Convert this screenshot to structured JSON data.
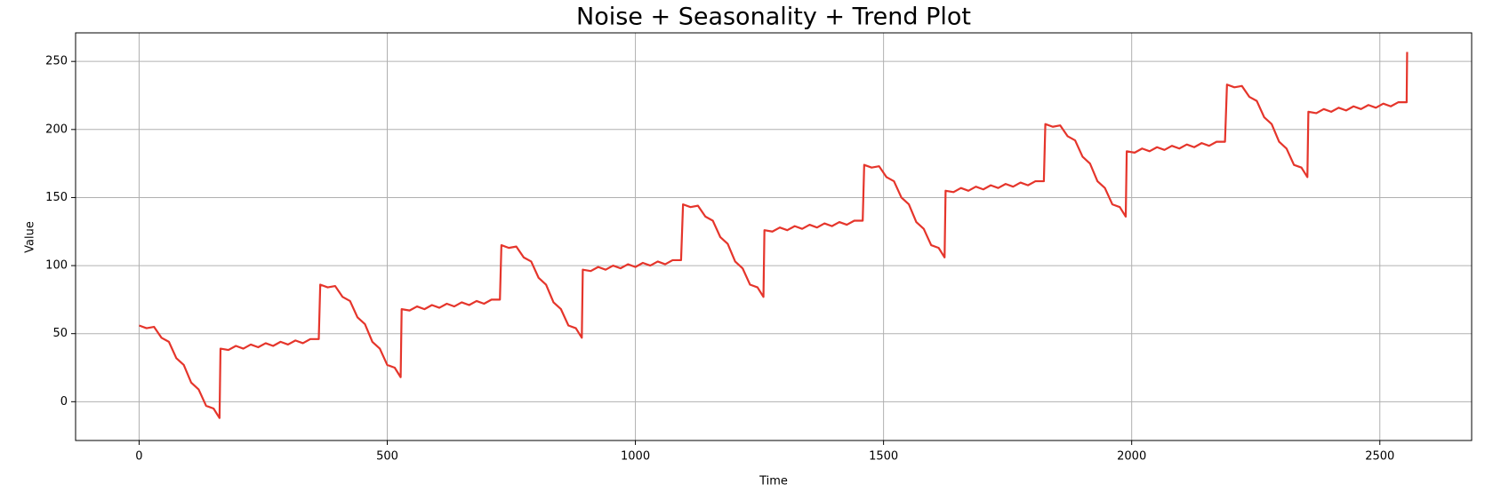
{
  "chart_data": {
    "type": "line",
    "title": "Noise + Seasonality + Trend Plot",
    "xlabel": "Time",
    "ylabel": "Value",
    "color": "#e5352b",
    "grid": true,
    "xlim": [
      -128,
      2685
    ],
    "ylim": [
      -28.5,
      271
    ],
    "xticks": [
      0,
      500,
      1000,
      1500,
      2000,
      2500
    ],
    "yticks": [
      0,
      50,
      100,
      150,
      200,
      250
    ],
    "x": [
      0,
      15,
      30,
      45,
      60,
      75,
      90,
      105,
      120,
      135,
      150,
      162,
      164,
      180,
      195,
      210,
      225,
      240,
      255,
      270,
      285,
      300,
      315,
      330,
      345,
      362,
      365,
      380,
      395,
      410,
      425,
      440,
      455,
      470,
      485,
      500,
      515,
      527,
      529,
      545,
      560,
      575,
      590,
      605,
      620,
      635,
      650,
      665,
      680,
      695,
      710,
      727,
      730,
      745,
      760,
      775,
      790,
      805,
      820,
      835,
      850,
      865,
      880,
      892,
      894,
      910,
      925,
      940,
      955,
      970,
      985,
      1000,
      1015,
      1030,
      1045,
      1060,
      1075,
      1092,
      1096,
      1111,
      1126,
      1141,
      1156,
      1171,
      1186,
      1201,
      1216,
      1231,
      1246,
      1258,
      1260,
      1276,
      1291,
      1306,
      1321,
      1336,
      1351,
      1366,
      1381,
      1396,
      1411,
      1426,
      1441,
      1458,
      1461,
      1476,
      1491,
      1506,
      1521,
      1536,
      1551,
      1566,
      1581,
      1596,
      1611,
      1623,
      1625,
      1641,
      1656,
      1671,
      1686,
      1701,
      1716,
      1731,
      1746,
      1761,
      1776,
      1791,
      1806,
      1823,
      1826,
      1841,
      1856,
      1871,
      1886,
      1901,
      1916,
      1931,
      1946,
      1961,
      1976,
      1988,
      1990,
      2006,
      2021,
      2036,
      2051,
      2066,
      2081,
      2096,
      2111,
      2126,
      2141,
      2156,
      2171,
      2188,
      2192,
      2207,
      2222,
      2237,
      2252,
      2267,
      2282,
      2297,
      2312,
      2327,
      2342,
      2354,
      2356,
      2372,
      2387,
      2402,
      2417,
      2432,
      2447,
      2462,
      2477,
      2492,
      2507,
      2522,
      2537,
      2554,
      2555
    ],
    "values": [
      56,
      54,
      55,
      47,
      44,
      32,
      27,
      14,
      9,
      -3,
      -5,
      -12,
      39,
      38,
      41,
      39,
      42,
      40,
      43,
      41,
      44,
      42,
      45,
      43,
      46,
      46,
      86,
      84,
      85,
      77,
      74,
      62,
      57,
      44,
      39,
      27,
      25,
      18,
      68,
      67,
      70,
      68,
      71,
      69,
      72,
      70,
      73,
      71,
      74,
      72,
      75,
      75,
      115,
      113,
      114,
      106,
      103,
      91,
      86,
      73,
      68,
      56,
      54,
      47,
      97,
      96,
      99,
      97,
      100,
      98,
      101,
      99,
      102,
      100,
      103,
      101,
      104,
      104,
      145,
      143,
      144,
      136,
      133,
      121,
      116,
      103,
      98,
      86,
      84,
      77,
      126,
      125,
      128,
      126,
      129,
      127,
      130,
      128,
      131,
      129,
      132,
      130,
      133,
      133,
      174,
      172,
      173,
      165,
      162,
      150,
      145,
      132,
      127,
      115,
      113,
      106,
      155,
      154,
      157,
      155,
      158,
      156,
      159,
      157,
      160,
      158,
      161,
      159,
      162,
      162,
      204,
      202,
      203,
      195,
      192,
      180,
      175,
      162,
      157,
      145,
      143,
      136,
      184,
      183,
      186,
      184,
      187,
      185,
      188,
      186,
      189,
      187,
      190,
      188,
      191,
      191,
      233,
      231,
      232,
      224,
      221,
      209,
      204,
      191,
      186,
      174,
      172,
      165,
      213,
      212,
      215,
      213,
      216,
      214,
      217,
      215,
      218,
      216,
      219,
      217,
      220,
      220,
      257
    ]
  }
}
